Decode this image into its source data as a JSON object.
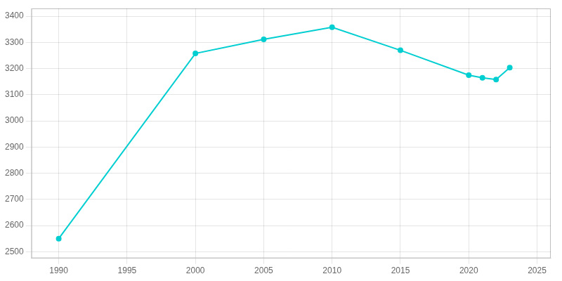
{
  "chart_data": {
    "type": "line",
    "x": [
      1990,
      2000,
      2005,
      2010,
      2015,
      2020,
      2021,
      2022,
      2023
    ],
    "values": [
      2550,
      3258,
      3312,
      3358,
      3270,
      3175,
      3165,
      3158,
      3204
    ],
    "color": "#00CED1",
    "marker": "circle",
    "xlim": [
      1988,
      2026
    ],
    "ylim": [
      2475,
      3430
    ],
    "xticks": [
      1990,
      1995,
      2000,
      2005,
      2010,
      2015,
      2020,
      2025
    ],
    "yticks": [
      2500,
      2600,
      2700,
      2800,
      2900,
      3000,
      3100,
      3200,
      3300,
      3400
    ],
    "grid": true
  }
}
